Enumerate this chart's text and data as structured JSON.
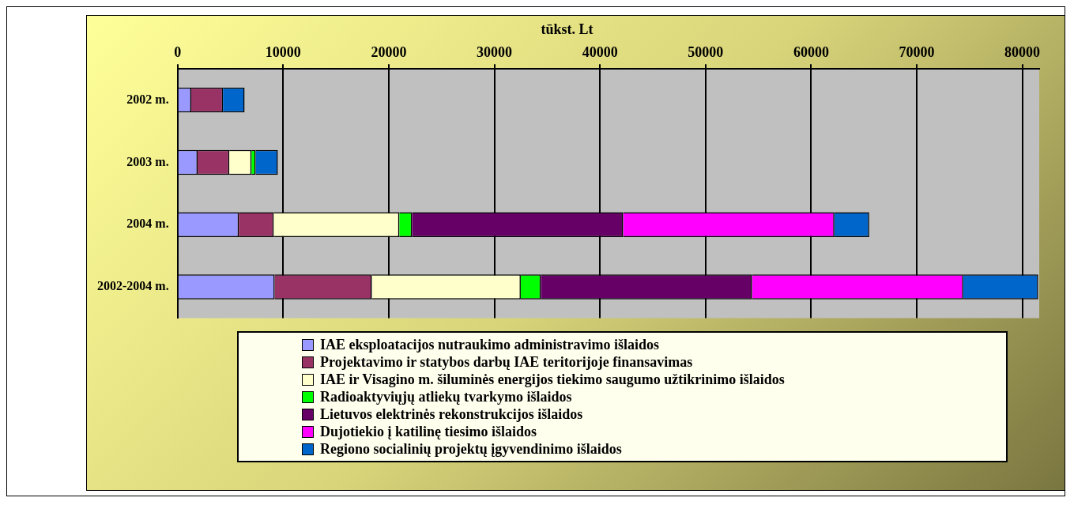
{
  "chart_data": {
    "type": "bar",
    "orientation": "horizontal",
    "stacked": true,
    "title": "tūkst. Lt",
    "categories": [
      "2002 m.",
      "2003 m.",
      "2004 m.",
      "2002-2004 m."
    ],
    "series": [
      {
        "name": "IAE eksploatacijos nutraukimo administravimo išlaidos",
        "color": "#9999ff",
        "values": [
          1300,
          1900,
          5800,
          9200
        ]
      },
      {
        "name": "Projektavimo ir statybos darbų IAE teritorijoje finansavimas",
        "color": "#993366",
        "values": [
          3000,
          3000,
          3300,
          9200
        ]
      },
      {
        "name": "IAE ir Visagino m. šiluminės energijos tiekimo saugumo užtikrinimo išlaidos",
        "color": "#ffffcc",
        "values": [
          null,
          2100,
          11900,
          14100
        ]
      },
      {
        "name": "Radioaktyviųjų atliekų tvarkymo išlaidos",
        "color": "#00ff00",
        "values": [
          null,
          400,
          1200,
          1900
        ]
      },
      {
        "name": "Lietuvos elektrinės rekonstrukcijos išlaidos",
        "color": "#660066",
        "values": [
          null,
          null,
          20000,
          20000
        ]
      },
      {
        "name": "Dujotiekio į katilinę tiesimo išlaidos",
        "color": "#ff00ff",
        "values": [
          null,
          null,
          20000,
          20000
        ]
      },
      {
        "name": "Regiono socialinių projektų įgyvendinimo išlaidos",
        "color": "#0066cc",
        "values": [
          2050,
          2100,
          3300,
          7100
        ]
      }
    ],
    "xlim": [
      0,
      81600
    ],
    "xticks": [
      0,
      10000,
      20000,
      30000,
      40000,
      50000,
      60000,
      70000,
      80000
    ],
    "grid": "x",
    "legend": "bottom"
  }
}
